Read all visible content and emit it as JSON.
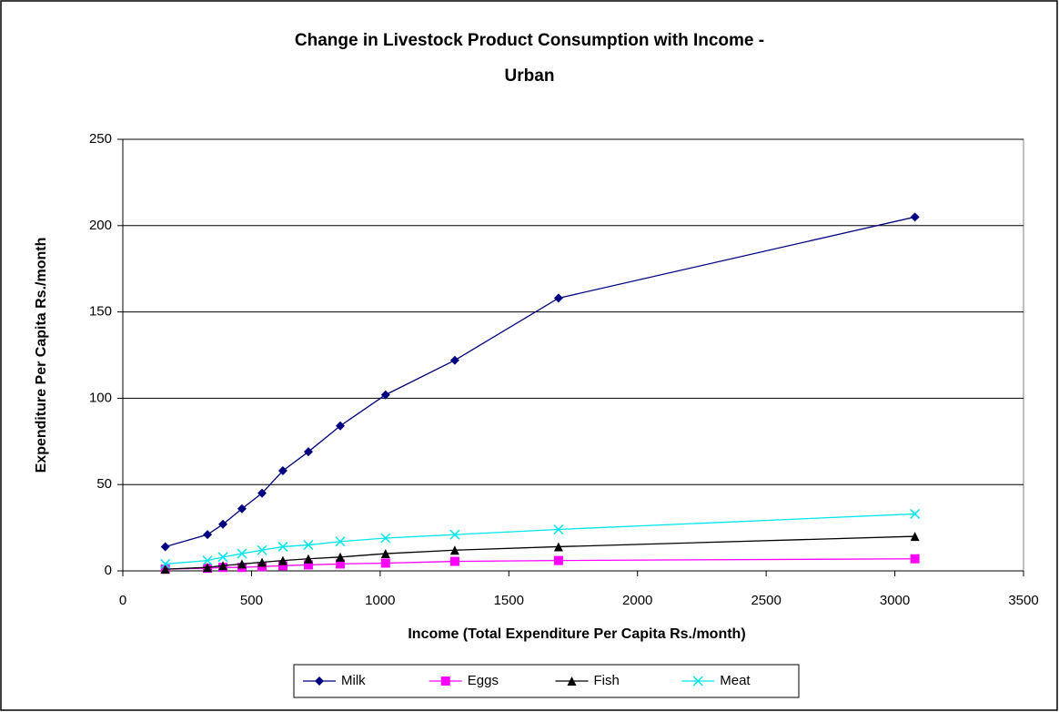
{
  "chart_data": {
    "type": "line",
    "title": [
      "Change in Livestock Product Consumption with Income -",
      "Urban"
    ],
    "x_label": "Income (Total Expenditure Per Capita Rs./month)",
    "y_label": "Expenditure Per Capita Rs./month",
    "x": [
      165,
      329,
      389,
      463,
      541,
      622,
      721,
      845,
      1021,
      1290,
      1693,
      3078
    ],
    "series": [
      {
        "name": "Milk",
        "color": "#000080",
        "marker": "diamond",
        "values": [
          14,
          21,
          27,
          36,
          45,
          58,
          69,
          84,
          102,
          122,
          158,
          205
        ]
      },
      {
        "name": "Eggs",
        "color": "#ff00ff",
        "marker": "square",
        "values": [
          1,
          1.5,
          2,
          2,
          2.5,
          3,
          3.5,
          4,
          4.5,
          5.5,
          6,
          7
        ]
      },
      {
        "name": "Fish",
        "color": "#000000",
        "marker": "triangle",
        "values": [
          1,
          2,
          3,
          4,
          5,
          6,
          7,
          8,
          10,
          12,
          14,
          20
        ]
      },
      {
        "name": "Meat",
        "color": "#00e5ee",
        "marker": "x",
        "values": [
          4,
          6,
          8,
          10,
          12,
          14,
          15,
          17,
          19,
          21,
          24,
          33
        ]
      }
    ],
    "xlim": [
      0,
      3500
    ],
    "xticks": [
      0,
      500,
      1000,
      1500,
      2000,
      2500,
      3000,
      3500
    ],
    "ylim": [
      0,
      250
    ],
    "yticks": [
      0,
      50,
      100,
      150,
      200,
      250
    ],
    "grid": true,
    "legend": "bottom"
  }
}
